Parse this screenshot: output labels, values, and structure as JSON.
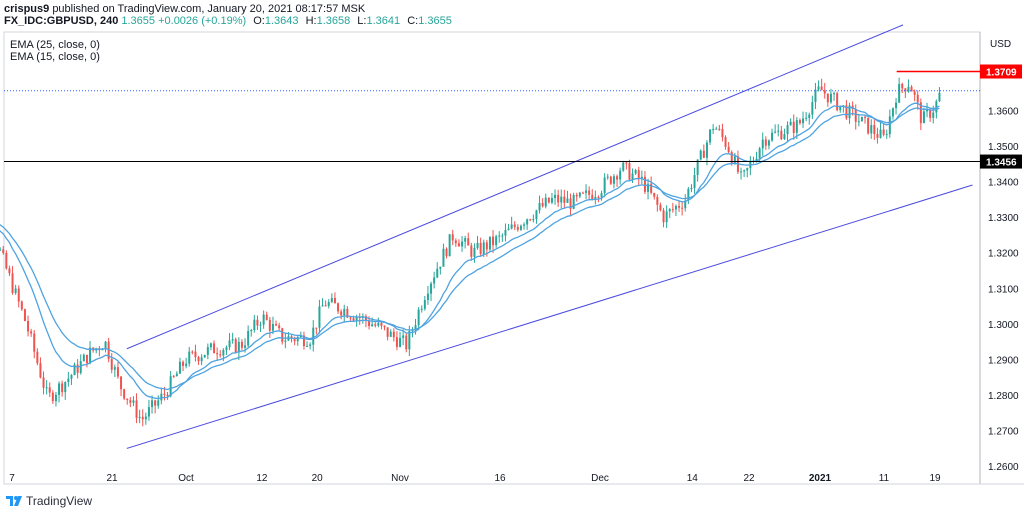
{
  "header": {
    "user": "crispus9",
    "published": "published on TradingView.com, January 20, 2021 08:17:57 MSK",
    "symbol": "FX_IDC:GBPUSD, 240",
    "last": "1.3655",
    "change": "+0.0026 (+0.19%)",
    "o_label": "O:",
    "o_value": "1.3643",
    "h_label": "H:",
    "h_value": "1.3658",
    "l_label": "L:",
    "l_value": "1.3641",
    "c_label": "C:",
    "c_value": "1.3655"
  },
  "indicators": [
    "EMA (25, close, 0)",
    "EMA (15, close, 0)"
  ],
  "currency": "USD",
  "footer": {
    "brand": "TradingView"
  },
  "colors": {
    "up": "#26a69a",
    "down": "#ef5350",
    "ema": "#4fa3e0",
    "channel": "#4a4ae0",
    "red_line": "#ff0000",
    "support": "#000000",
    "dotted": "#2962ff"
  },
  "chart_data": {
    "type": "candlestick",
    "y_axis": {
      "ticks": [
        "1.3709",
        "1.3600",
        "1.3500",
        "1.3456",
        "1.3400",
        "1.3300",
        "1.3200",
        "1.3100",
        "1.3000",
        "1.2900",
        "1.2800",
        "1.2700",
        "1.2600"
      ],
      "range": [
        1.255,
        1.382
      ]
    },
    "x_axis": {
      "ticks": [
        "7",
        "21",
        "Oct",
        "12",
        "20",
        "Nov",
        "16",
        "Dec",
        "14",
        "22",
        "2021",
        "11",
        "19"
      ]
    },
    "levels": [
      {
        "name": "resistance",
        "value": 1.3709,
        "label": "1.3709"
      },
      {
        "name": "support",
        "value": 1.3456,
        "label": "1.3456"
      },
      {
        "name": "last-price",
        "value": 1.3655
      }
    ],
    "channel": {
      "upper": [
        [
          "Sep 23",
          1.293
        ],
        [
          "Jan 14",
          1.384
        ]
      ],
      "lower": [
        [
          "Sep 23",
          1.265
        ],
        [
          "Jan 25",
          1.339
        ]
      ]
    },
    "close_path": [
      [
        "Sep 1",
        1.332
      ],
      [
        "Sep 5",
        1.322
      ],
      [
        "Sep 9",
        1.3
      ],
      [
        "Sep 12",
        1.279
      ],
      [
        "Sep 15",
        1.285
      ],
      [
        "Sep 18",
        1.292
      ],
      [
        "Sep 20",
        1.295
      ],
      [
        "Sep 22",
        1.283
      ],
      [
        "Sep 25",
        1.273
      ],
      [
        "Sep 28",
        1.28
      ],
      [
        "Oct 1",
        1.29
      ],
      [
        "Oct 5",
        1.293
      ],
      [
        "Oct 9",
        1.294
      ],
      [
        "Oct 12",
        1.302
      ],
      [
        "Oct 15",
        1.296
      ],
      [
        "Oct 19",
        1.296
      ],
      [
        "Oct 21",
        1.306
      ],
      [
        "Oct 24",
        1.304
      ],
      [
        "Oct 28",
        1.3
      ],
      [
        "Nov 2",
        1.294
      ],
      [
        "Nov 5",
        1.31
      ],
      [
        "Nov 9",
        1.325
      ],
      [
        "Nov 12",
        1.32
      ],
      [
        "Nov 16",
        1.324
      ],
      [
        "Nov 20",
        1.33
      ],
      [
        "Nov 24",
        1.335
      ],
      [
        "Nov 27",
        1.334
      ],
      [
        "Dec 1",
        1.338
      ],
      [
        "Dec 4",
        1.344
      ],
      [
        "Dec 7",
        1.34
      ],
      [
        "Dec 10",
        1.33
      ],
      [
        "Dec 13",
        1.335
      ],
      [
        "Dec 17",
        1.356
      ],
      [
        "Dec 19",
        1.35
      ],
      [
        "Dec 21",
        1.34
      ],
      [
        "Dec 24",
        1.352
      ],
      [
        "Dec 29",
        1.356
      ],
      [
        "Jan 1",
        1.366
      ],
      [
        "Jan 5",
        1.36
      ],
      [
        "Jan 8",
        1.356
      ],
      [
        "Jan 11",
        1.352
      ],
      [
        "Jan 13",
        1.365
      ],
      [
        "Jan 15",
        1.368
      ],
      [
        "Jan 17",
        1.357
      ],
      [
        "Jan 19",
        1.361
      ],
      [
        "Jan 20",
        1.3655
      ]
    ]
  }
}
